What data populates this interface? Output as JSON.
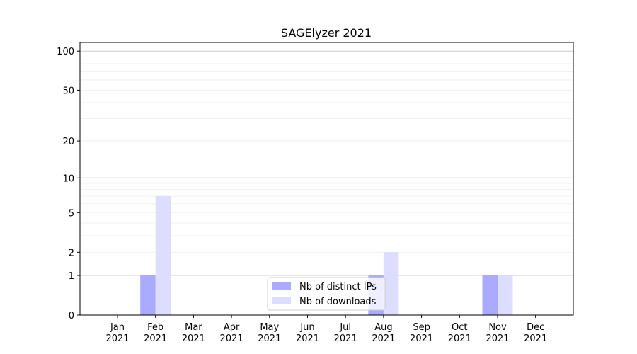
{
  "chart_data": {
    "type": "bar",
    "title": "SAGElyzer 2021",
    "xlabel": "",
    "ylabel": "",
    "yscale": "log(1+y)",
    "ylim": [
      0,
      116
    ],
    "yticks": [
      0,
      1,
      2,
      5,
      10,
      20,
      50,
      100
    ],
    "ytick_labels": [
      "0",
      "1",
      "2",
      "5",
      "10",
      "20",
      "50",
      "100"
    ],
    "categories": [
      "Jan\n2021",
      "Feb\n2021",
      "Mar\n2021",
      "Apr\n2021",
      "May\n2021",
      "Jun\n2021",
      "Jul\n2021",
      "Aug\n2021",
      "Sep\n2021",
      "Oct\n2021",
      "Nov\n2021",
      "Dec\n2021"
    ],
    "series": [
      {
        "name": "Nb of distinct IPs",
        "color": "#aaaaff",
        "values": [
          0,
          1,
          0,
          0,
          0,
          0,
          0,
          1,
          0,
          0,
          1,
          0
        ]
      },
      {
        "name": "Nb of downloads",
        "color": "#ddddff",
        "values": [
          0,
          7,
          0,
          0,
          0,
          0,
          0,
          2,
          0,
          0,
          1,
          0
        ]
      }
    ],
    "grid": true,
    "legend": "lower-center"
  }
}
